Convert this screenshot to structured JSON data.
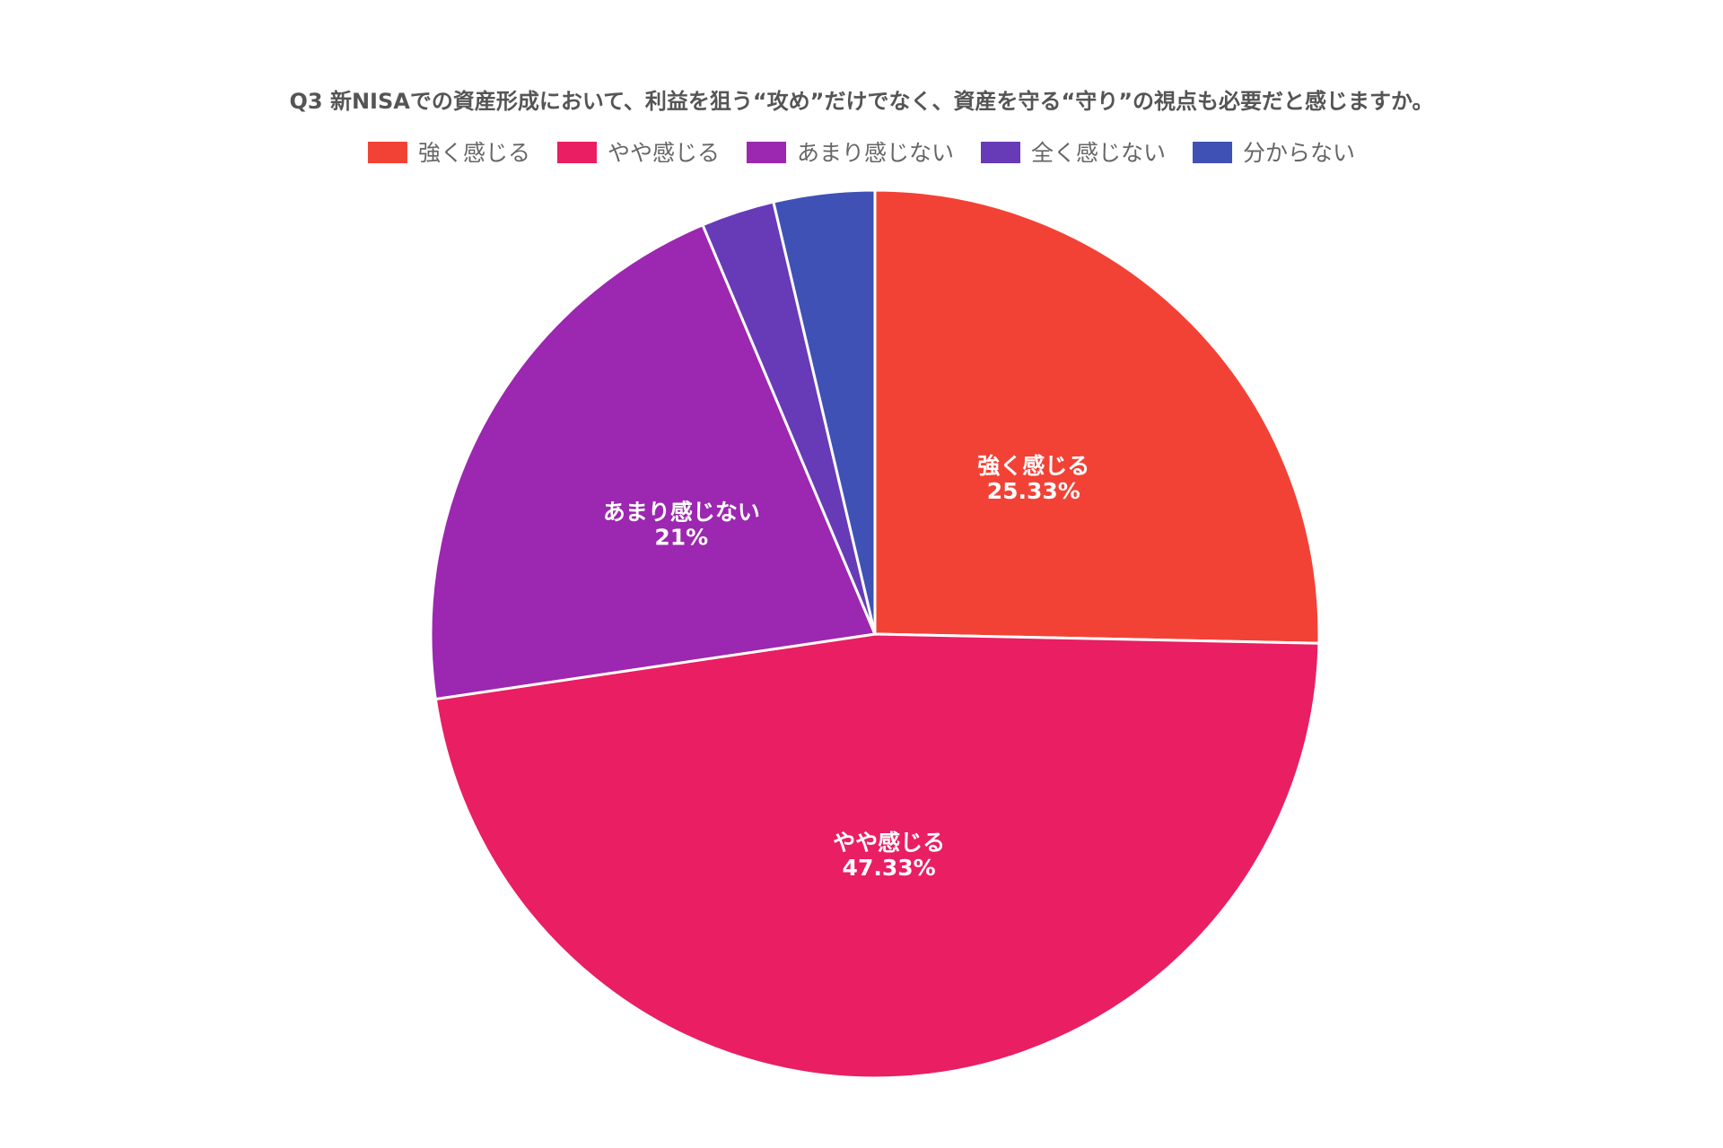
{
  "chart_data": {
    "type": "pie",
    "title": "Q3 新NISAでの資産形成において、利益を狙う“攻め”だけでなく、資産を守る“守り”の視点も必要だと感じますか。",
    "legend_position": "top",
    "start_angle": "12 o'clock",
    "direction": "clockwise",
    "categories": [
      "強く感じる",
      "やや感じる",
      "あまり感じない",
      "全く感じない",
      "分からない"
    ],
    "values": [
      25.33,
      47.33,
      21,
      2.67,
      3.67
    ],
    "value_labels": [
      "25.33%",
      "47.33%",
      "21%",
      "",
      ""
    ],
    "colors": [
      "#F24236",
      "#E91E63",
      "#9C27B0",
      "#673AB7",
      "#3F51B5"
    ]
  }
}
